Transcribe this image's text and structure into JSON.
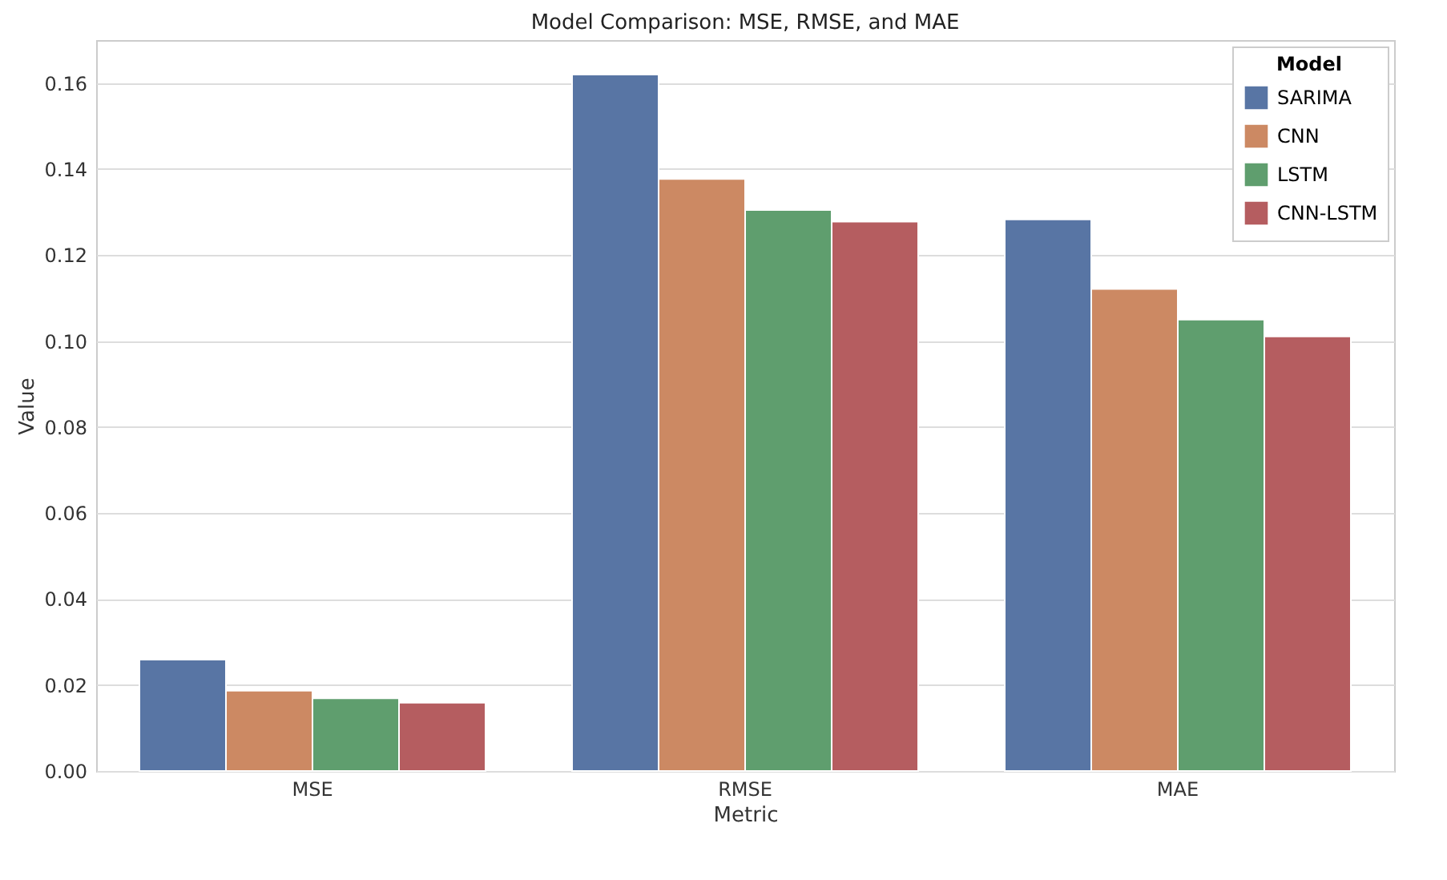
{
  "chart_data": {
    "type": "bar",
    "title": "Model Comparison: MSE, RMSE, and MAE",
    "xlabel": "Metric",
    "ylabel": "Value",
    "legend_title": "Model",
    "categories": [
      "MSE",
      "RMSE",
      "MAE"
    ],
    "series": [
      {
        "name": "SARIMA",
        "color": "#5875a4",
        "values": [
          0.0259,
          0.162,
          0.1283
        ]
      },
      {
        "name": "CNN",
        "color": "#cc8963",
        "values": [
          0.0187,
          0.1377,
          0.1121
        ]
      },
      {
        "name": "LSTM",
        "color": "#5f9e6e",
        "values": [
          0.0169,
          0.1305,
          0.105
        ]
      },
      {
        "name": "CNN-LSTM",
        "color": "#b55d60",
        "values": [
          0.0159,
          0.1278,
          0.1011
        ]
      }
    ],
    "ylim": [
      0,
      0.17
    ],
    "yticks": [
      {
        "value": 0,
        "label": "0.00"
      },
      0.02,
      0.04,
      0.06,
      0.08,
      {
        "value": 0.1,
        "label": "0.10"
      },
      0.12,
      0.14,
      0.16
    ],
    "grid": "y",
    "legend": "top right"
  }
}
